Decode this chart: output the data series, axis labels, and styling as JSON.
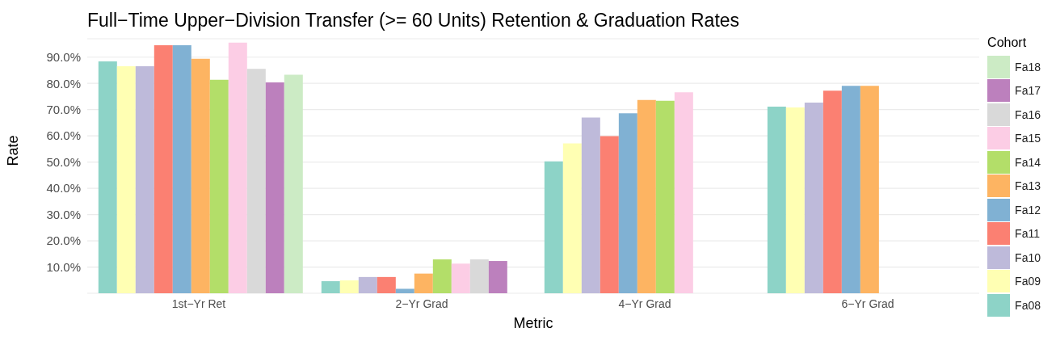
{
  "chart_data": {
    "type": "bar",
    "title": "Full−Time Upper−Division Transfer (>= 60 Units) Retention & Graduation Rates",
    "xlabel": "Metric",
    "ylabel": "Rate",
    "legend_title": "Cohort",
    "categories": [
      "1st−Yr Ret",
      "2−Yr Grad",
      "4−Yr Grad",
      "6−Yr Grad"
    ],
    "series": [
      {
        "name": "Fa08",
        "color": "#8dd3c7",
        "values": [
          88.4,
          4.6,
          50.3,
          71.1
        ]
      },
      {
        "name": "Fa09",
        "color": "#ffffb3",
        "values": [
          86.5,
          4.9,
          57.1,
          70.8
        ]
      },
      {
        "name": "Fa10",
        "color": "#bebada",
        "values": [
          86.5,
          6.2,
          67.0,
          72.7
        ]
      },
      {
        "name": "Fa11",
        "color": "#fb8072",
        "values": [
          94.5,
          6.2,
          59.9,
          77.2
        ]
      },
      {
        "name": "Fa12",
        "color": "#80b1d3",
        "values": [
          94.5,
          1.7,
          68.6,
          79.1
        ]
      },
      {
        "name": "Fa13",
        "color": "#fdb462",
        "values": [
          89.4,
          7.5,
          73.7,
          79.1
        ]
      },
      {
        "name": "Fa14",
        "color": "#b3de69",
        "values": [
          81.4,
          12.9,
          73.4,
          null
        ]
      },
      {
        "name": "Fa15",
        "color": "#fccde5",
        "values": [
          95.5,
          11.3,
          76.6,
          null
        ]
      },
      {
        "name": "Fa16",
        "color": "#d9d9d9",
        "values": [
          85.5,
          12.9,
          null,
          null
        ]
      },
      {
        "name": "Fa17",
        "color": "#bc80bd",
        "values": [
          80.4,
          12.3,
          null,
          null
        ]
      },
      {
        "name": "Fa18",
        "color": "#ccebc5",
        "values": [
          83.3,
          null,
          null,
          null
        ]
      }
    ],
    "ylim": [
      0,
      97
    ],
    "yticks": [
      {
        "value": 10,
        "label": "10.0%"
      },
      {
        "value": 20,
        "label": "20.0%"
      },
      {
        "value": 30,
        "label": "30.0%"
      },
      {
        "value": 40,
        "label": "40.0%"
      },
      {
        "value": 50,
        "label": "50.0%"
      },
      {
        "value": 60,
        "label": "60.0%"
      },
      {
        "value": 70,
        "label": "70.0%"
      },
      {
        "value": 80,
        "label": "80.0%"
      },
      {
        "value": 90,
        "label": "90.0%"
      }
    ],
    "grid": "y",
    "legend": "right"
  }
}
